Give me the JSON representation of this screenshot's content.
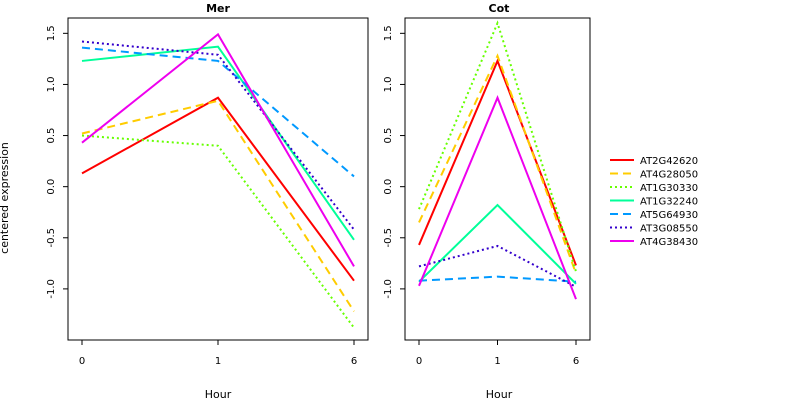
{
  "chart_data": {
    "type": "line",
    "ylabel": "centered expression",
    "legend_position": "right",
    "series_styles": [
      {
        "name": "AT2G42620",
        "color": "#ff0000",
        "dash": "solid"
      },
      {
        "name": "AT4G28050",
        "color": "#ffcc00",
        "dash": "dashed"
      },
      {
        "name": "AT1G30330",
        "color": "#66ff00",
        "dash": "dotted"
      },
      {
        "name": "AT1G32240",
        "color": "#00ff99",
        "dash": "solid"
      },
      {
        "name": "AT5G64930",
        "color": "#0099ff",
        "dash": "dashed"
      },
      {
        "name": "AT3G08550",
        "color": "#3300cc",
        "dash": "dotted"
      },
      {
        "name": "AT4G38430",
        "color": "#ee00ee",
        "dash": "solid"
      }
    ],
    "panels": [
      {
        "title": "Mer",
        "xlabel": "Hour",
        "categories": [
          "0",
          "1",
          "6"
        ],
        "yticks": [
          "-1.0",
          "-0.5",
          "0.0",
          "0.5",
          "1.0",
          "1.5"
        ],
        "ylim": [
          -1.5,
          1.65
        ],
        "series": [
          {
            "name": "AT2G42620",
            "values": [
              0.13,
              0.87,
              -0.92
            ]
          },
          {
            "name": "AT4G28050",
            "values": [
              0.52,
              0.84,
              -1.22
            ]
          },
          {
            "name": "AT1G30330",
            "values": [
              0.5,
              0.4,
              -1.38
            ]
          },
          {
            "name": "AT1G32240",
            "values": [
              1.23,
              1.37,
              -0.52
            ]
          },
          {
            "name": "AT5G64930",
            "values": [
              1.36,
              1.23,
              0.1
            ]
          },
          {
            "name": "AT3G08550",
            "values": [
              1.42,
              1.29,
              -0.42
            ]
          },
          {
            "name": "AT4G38430",
            "values": [
              0.43,
              1.49,
              -0.78
            ]
          }
        ]
      },
      {
        "title": "Cot",
        "xlabel": "Hour",
        "categories": [
          "0",
          "1",
          "6"
        ],
        "yticks": [
          "-1.0",
          "-0.5",
          "0.0",
          "0.5",
          "1.0",
          "1.5"
        ],
        "ylim": [
          -1.5,
          1.65
        ],
        "series": [
          {
            "name": "AT2G42620",
            "values": [
              -0.57,
              1.23,
              -0.77
            ]
          },
          {
            "name": "AT4G28050",
            "values": [
              -0.35,
              1.28,
              -0.85
            ]
          },
          {
            "name": "AT1G30330",
            "values": [
              -0.22,
              1.6,
              -0.83
            ]
          },
          {
            "name": "AT1G32240",
            "values": [
              -0.93,
              -0.18,
              -0.95
            ]
          },
          {
            "name": "AT5G64930",
            "values": [
              -0.92,
              -0.88,
              -0.93
            ]
          },
          {
            "name": "AT3G08550",
            "values": [
              -0.78,
              -0.58,
              -0.98
            ]
          },
          {
            "name": "AT4G38430",
            "values": [
              -0.97,
              0.87,
              -1.1
            ]
          }
        ]
      }
    ]
  }
}
